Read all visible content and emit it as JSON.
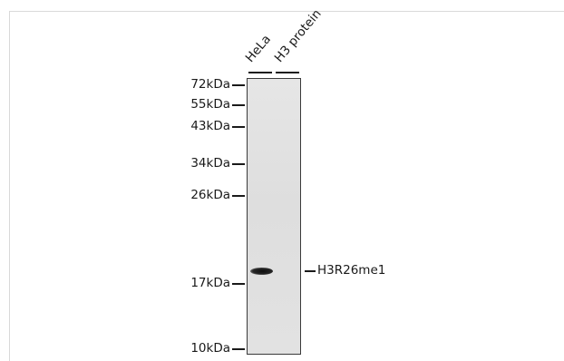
{
  "blot": {
    "lanes": [
      {
        "label": "HeLa"
      },
      {
        "label": "H3 protein"
      }
    ],
    "markers": [
      {
        "label": "72kDa"
      },
      {
        "label": "55kDa"
      },
      {
        "label": "43kDa"
      },
      {
        "label": "34kDa"
      },
      {
        "label": "26kDa"
      },
      {
        "label": "17kDa"
      },
      {
        "label": "10kDa"
      }
    ],
    "target": {
      "label": "H3R26me1"
    }
  }
}
